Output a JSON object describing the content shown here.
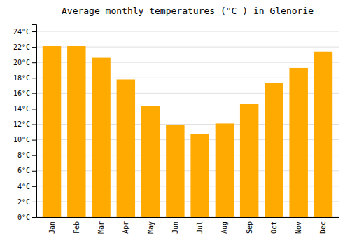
{
  "chart_data": {
    "type": "bar",
    "title": "Average monthly temperatures (°C ) in Glenorie",
    "categories": [
      "Jan",
      "Feb",
      "Mar",
      "Apr",
      "May",
      "Jun",
      "Jul",
      "Aug",
      "Sep",
      "Oct",
      "Nov",
      "Dec"
    ],
    "values": [
      22.1,
      22.1,
      20.6,
      17.8,
      14.4,
      11.9,
      10.7,
      12.1,
      14.6,
      17.3,
      19.3,
      21.4
    ],
    "color": "#FFAA00",
    "ylim": [
      0,
      25
    ],
    "yticks": [
      {
        "value": 0,
        "label": "0°C"
      },
      {
        "value": 2,
        "label": "2°C"
      },
      {
        "value": 4,
        "label": "4°C"
      },
      {
        "value": 6,
        "label": "6°C"
      },
      {
        "value": 8,
        "label": "8°C"
      },
      {
        "value": 10,
        "label": "10°C"
      },
      {
        "value": 12,
        "label": "12°C"
      },
      {
        "value": 14,
        "label": "14°C"
      },
      {
        "value": 16,
        "label": "16°C"
      },
      {
        "value": 18,
        "label": "18°C"
      },
      {
        "value": 20,
        "label": "20°C"
      },
      {
        "value": 22,
        "label": "22°C"
      },
      {
        "value": 24,
        "label": "24°C"
      }
    ],
    "grid": true
  }
}
